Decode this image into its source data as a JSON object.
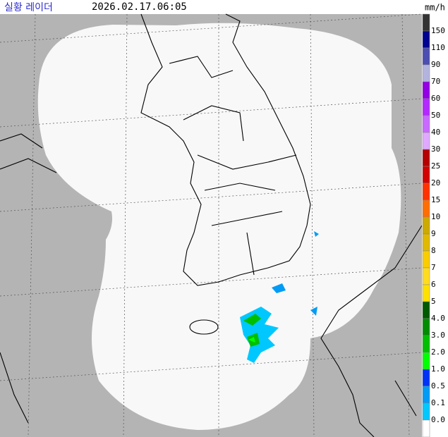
{
  "header": {
    "title": "실황 레이더",
    "timestamp": "2026.02.17.06:05",
    "unit": "mm/h"
  },
  "legend": {
    "labels": [
      "150",
      "110",
      "90",
      "70",
      "60",
      "50",
      "40",
      "30",
      "25",
      "20",
      "15",
      "10",
      "9",
      "8",
      "7",
      "6",
      "5",
      "4.0",
      "3.0",
      "2.0",
      "1.0",
      "0.5",
      "0.1",
      "0.0"
    ],
    "colors": [
      "#333333",
      "#000390",
      "#4c4eb1",
      "#b3b4de",
      "#9300e4",
      "#b329ff",
      "#c969ff",
      "#e0a9ff",
      "#b40000",
      "#d20000",
      "#ff3200",
      "#ff6e00",
      "#ccaa00",
      "#e0b900",
      "#f9cd00",
      "#ffdc1f",
      "#ffe100",
      "#005a00",
      "#008c00",
      "#00be00",
      "#00ff00",
      "#0033f5",
      "#009bf5",
      "#00c8ff",
      "#ffffff"
    ]
  }
}
